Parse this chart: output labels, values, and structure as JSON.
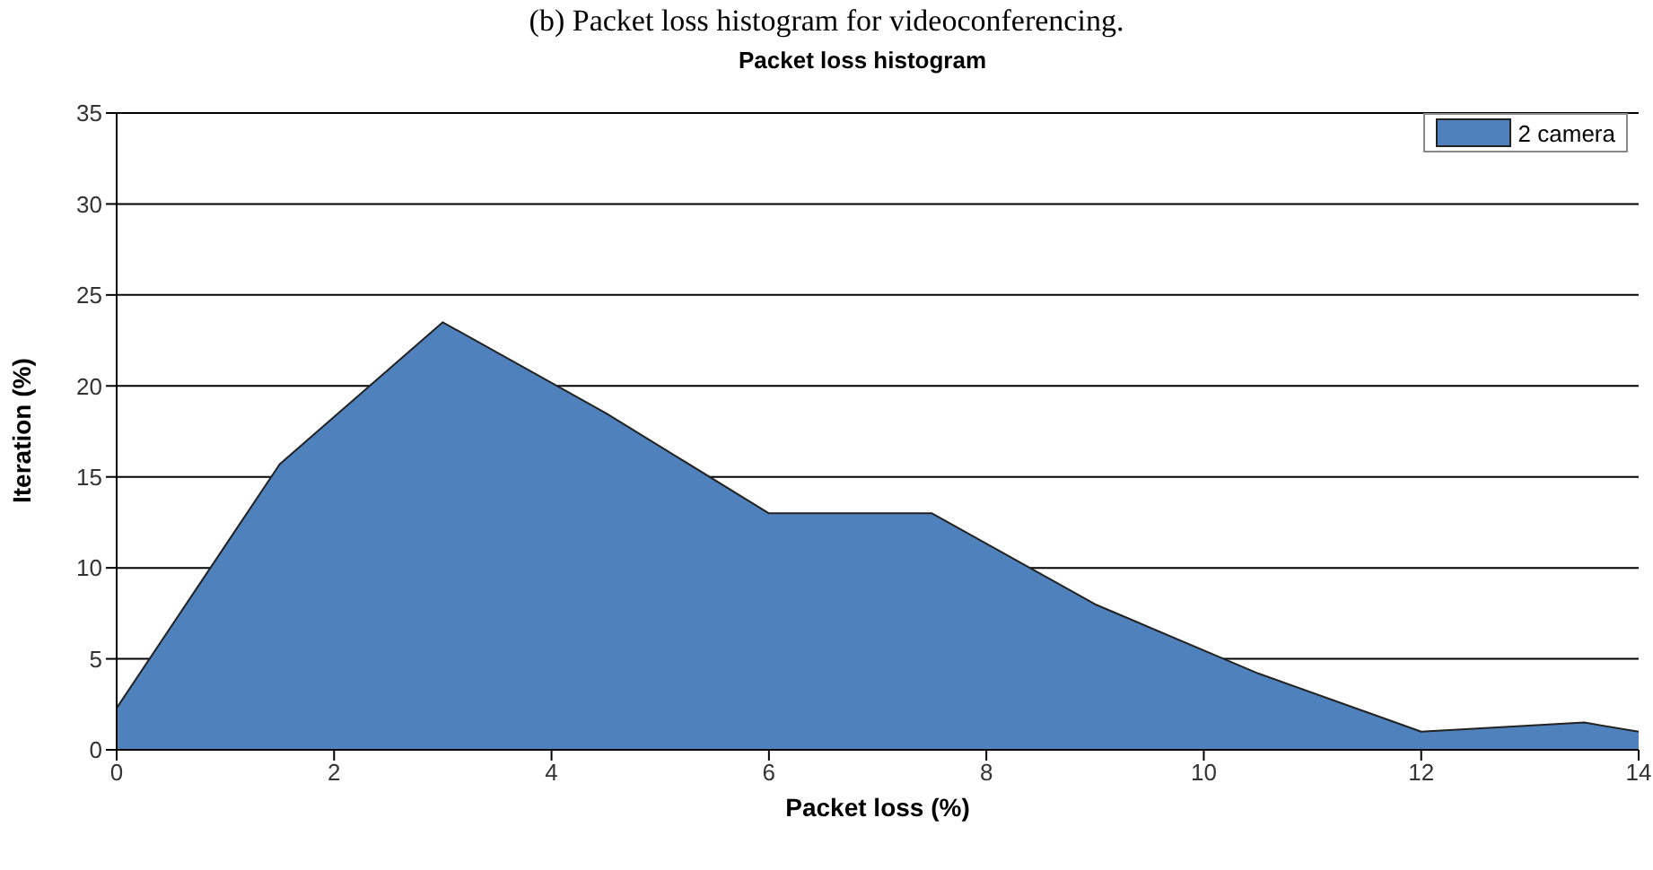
{
  "chart_data": {
    "type": "area",
    "title": "(b) Packet loss histogram for videoconferencing.",
    "subtitle": "Packet loss histogram",
    "xlabel": "Packet loss (%)",
    "ylabel": "Iteration (%)",
    "x": [
      0,
      1.5,
      3,
      4.5,
      6,
      7.5,
      9,
      10.5,
      12,
      13.5,
      14
    ],
    "series": [
      {
        "name": "2 camera",
        "color": "#4f81bd",
        "values": [
          2.3,
          15.7,
          23.5,
          18.5,
          13,
          13,
          8,
          4.2,
          1,
          1.5,
          1
        ]
      }
    ],
    "xlim": [
      0,
      14
    ],
    "xticks": [
      0,
      2,
      4,
      6,
      8,
      10,
      12,
      14
    ],
    "ylim": [
      0,
      35
    ],
    "yticks": [
      0,
      5,
      10,
      15,
      20,
      25,
      30,
      35
    ],
    "grid": "y",
    "legend": "top right"
  }
}
